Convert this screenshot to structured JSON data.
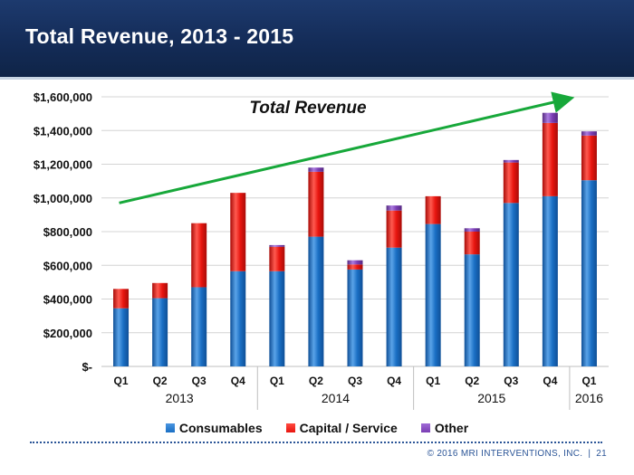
{
  "header": {
    "title": "Total Revenue, 2013 - 2015"
  },
  "chart_data": {
    "type": "bar",
    "stacked": true,
    "annotation": "Total Revenue",
    "categories": [
      "Q1",
      "Q2",
      "Q3",
      "Q4",
      "Q1",
      "Q2",
      "Q3",
      "Q4",
      "Q1",
      "Q2",
      "Q3",
      "Q4",
      "Q1"
    ],
    "year_groups": [
      {
        "label": "2013",
        "start": 0,
        "end": 3
      },
      {
        "label": "2014",
        "start": 4,
        "end": 7
      },
      {
        "label": "2015",
        "start": 8,
        "end": 11
      },
      {
        "label": "2016",
        "start": 12,
        "end": 12
      }
    ],
    "series": [
      {
        "name": "Consumables",
        "color": "#1a6fc4",
        "values": [
          345000,
          405000,
          470000,
          565000,
          565000,
          770000,
          575000,
          705000,
          845000,
          665000,
          970000,
          1010000,
          1105000
        ]
      },
      {
        "name": "Capital / Service",
        "color": "#e8150f",
        "values": [
          115000,
          90000,
          380000,
          465000,
          145000,
          385000,
          30000,
          220000,
          165000,
          135000,
          240000,
          435000,
          265000
        ]
      },
      {
        "name": "Other",
        "color": "#7a3db3",
        "values": [
          0,
          0,
          0,
          0,
          10000,
          25000,
          25000,
          30000,
          0,
          20000,
          15000,
          60000,
          25000
        ]
      }
    ],
    "yticks": [
      0,
      200000,
      400000,
      600000,
      800000,
      1000000,
      1200000,
      1400000,
      1600000
    ],
    "ytick_labels": [
      "$-",
      "$200,000",
      "$400,000",
      "$600,000",
      "$800,000",
      "$1,000,000",
      "$1,200,000",
      "$1,400,000",
      "$1,600,000"
    ],
    "ylim": [
      0,
      1600000
    ],
    "grid": true,
    "legend_position": "bottom",
    "trend_arrow": {
      "color": "#17a83a"
    }
  },
  "legend": {
    "items": [
      {
        "label": "Consumables",
        "color": "#1a6fc4"
      },
      {
        "label": "Capital / Service",
        "color": "#e8150f"
      },
      {
        "label": "Other",
        "color": "#7a3db3"
      }
    ]
  },
  "footer": {
    "copyright": "© 2016 MRI INTERVENTIONS, INC.",
    "separator": "|",
    "page": "21"
  }
}
